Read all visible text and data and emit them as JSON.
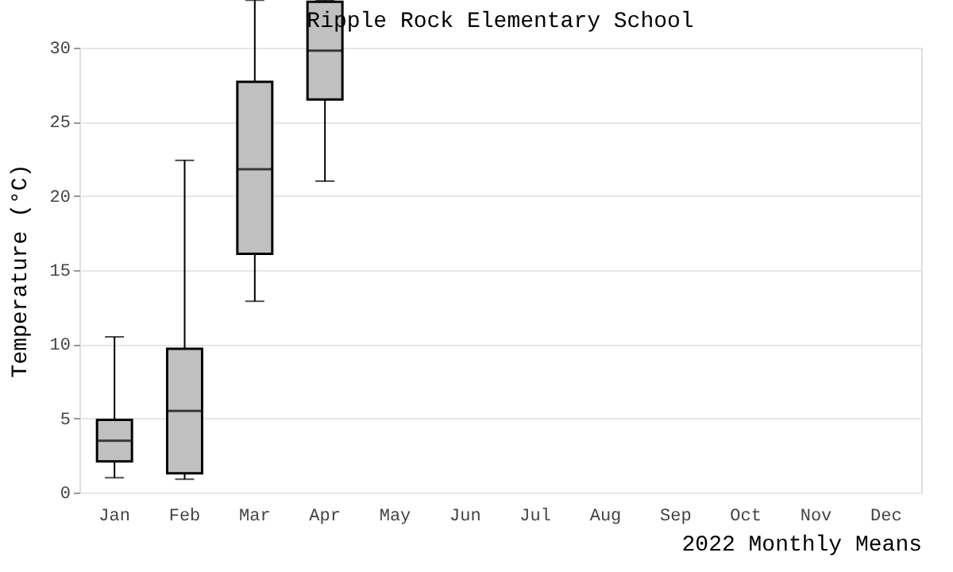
{
  "chart_data": {
    "type": "box",
    "title": "Ripple Rock Elementary School",
    "xlabel": "2022 Monthly Means",
    "ylabel": "Temperature (°C)",
    "categories": [
      "Jan",
      "Feb",
      "Mar",
      "Apr",
      "May",
      "Jun",
      "Jul",
      "Aug",
      "Sep",
      "Oct",
      "Nov",
      "Dec"
    ],
    "color": "#c0c0c0",
    "boxes": [
      {
        "low": 1.0,
        "q1": 2.1,
        "median": 3.5,
        "q3": 4.9,
        "high": 10.5
      },
      {
        "low": 0.9,
        "q1": 1.3,
        "median": 5.5,
        "q3": 9.7,
        "high": 22.4
      },
      {
        "low": 12.9,
        "q1": 16.1,
        "median": 21.8,
        "q3": 27.7,
        "high": 33.2
      },
      {
        "low": 21.0,
        "q1": 26.5,
        "median": 29.8,
        "q3": 33.1,
        "high": 33.2
      },
      null,
      null,
      null,
      null,
      null,
      null,
      null,
      null
    ],
    "ylim": [
      0,
      30
    ],
    "yticks": [
      0,
      5,
      10,
      15,
      20,
      25,
      30
    ],
    "grid": "y"
  }
}
